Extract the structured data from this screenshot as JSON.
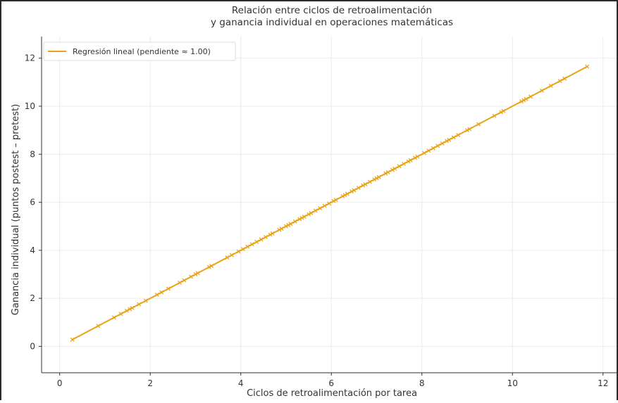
{
  "chart_data": {
    "type": "line",
    "title_lines": [
      "Relación entre ciclos de retroalimentación",
      "y ganancia individual en operaciones matemáticas"
    ],
    "xlabel": "Ciclos de retroalimentación por tarea",
    "ylabel": "Ganancia individual (puntos postest – pretest)",
    "xlim": [
      -0.4,
      12.3
    ],
    "ylim": [
      -1.1,
      12.9
    ],
    "xticks": [
      0,
      2,
      4,
      6,
      8,
      10,
      12
    ],
    "yticks": [
      0,
      2,
      4,
      6,
      8,
      10,
      12
    ],
    "grid": true,
    "legend_position": "top-left",
    "legend": [
      "Regresión lineal (pendiente ≈ 1.00)"
    ],
    "series": [
      {
        "name": "Regresión lineal (pendiente ≈ 1.00)",
        "color": "#E8A317",
        "line": {
          "x": [
            0.28,
            11.65
          ],
          "y": [
            0.28,
            11.65
          ]
        },
        "markers_x": [
          0.28,
          0.85,
          1.2,
          1.35,
          1.48,
          1.55,
          1.6,
          1.75,
          1.9,
          2.15,
          2.25,
          2.4,
          2.65,
          2.75,
          2.9,
          3.0,
          3.05,
          3.3,
          3.35,
          3.7,
          3.8,
          3.95,
          4.05,
          4.15,
          4.25,
          4.35,
          4.45,
          4.55,
          4.65,
          4.7,
          4.85,
          4.9,
          5.0,
          5.05,
          5.1,
          5.2,
          5.3,
          5.35,
          5.4,
          5.5,
          5.55,
          5.65,
          5.75,
          5.85,
          5.95,
          6.05,
          6.1,
          6.25,
          6.3,
          6.35,
          6.45,
          6.5,
          6.6,
          6.7,
          6.75,
          6.85,
          6.95,
          7.0,
          7.05,
          7.2,
          7.25,
          7.35,
          7.4,
          7.5,
          7.6,
          7.7,
          7.75,
          7.85,
          7.9,
          8.05,
          8.15,
          8.25,
          8.35,
          8.45,
          8.55,
          8.6,
          8.7,
          8.8,
          9.0,
          9.05,
          9.25,
          9.6,
          9.75,
          9.8,
          10.2,
          10.25,
          10.3,
          10.4,
          10.65,
          10.85,
          11.05,
          11.15,
          11.65
        ]
      }
    ]
  }
}
